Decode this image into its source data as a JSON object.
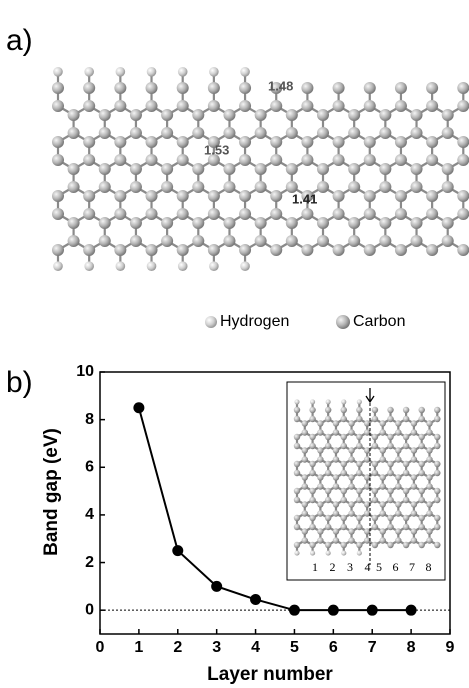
{
  "panel_a": {
    "label": "a)",
    "bond_lengths": [
      "1.48",
      "1.53",
      "1.41"
    ],
    "legend": [
      "Hydrogen",
      "Carbon"
    ]
  },
  "chart_data": {
    "type": "line",
    "label": "b)",
    "xlabel": "Layer number",
    "ylabel": "Band gap (eV)",
    "x": [
      1,
      2,
      3,
      4,
      5,
      6,
      7,
      8
    ],
    "values": [
      8.5,
      2.5,
      1.0,
      0.45,
      0,
      0,
      0,
      0
    ],
    "color": "#000000",
    "xlim": [
      0,
      9
    ],
    "ylim": [
      -1,
      10
    ],
    "xticks": [
      0,
      1,
      2,
      3,
      4,
      5,
      6,
      7,
      8,
      9
    ],
    "yticks": [
      0,
      2,
      4,
      6,
      8,
      10
    ],
    "reference_line": 0,
    "inset": {
      "labels": [
        "1",
        "2",
        "3",
        "4",
        "5",
        "6",
        "7",
        "8"
      ]
    }
  }
}
